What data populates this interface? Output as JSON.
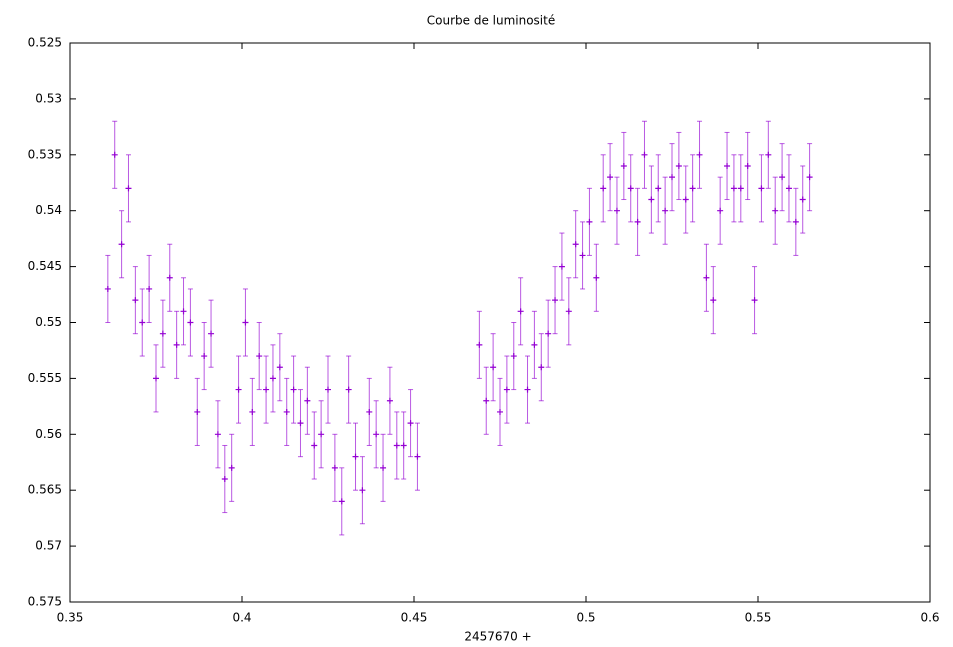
{
  "chart_data": {
    "type": "scatter",
    "title": "Courbe de luminosité",
    "x_label": "2457670 +",
    "xlim": [
      0.35,
      0.6
    ],
    "xticks": [
      0.35,
      0.4,
      0.45,
      0.5,
      0.55,
      0.6
    ],
    "ylim": [
      0.575,
      0.525
    ],
    "yticks": [
      0.525,
      0.53,
      0.535,
      0.54,
      0.545,
      0.55,
      0.555,
      0.56,
      0.565,
      0.57,
      0.575
    ],
    "series": [
      {
        "color": "#9400d3",
        "x": [
          0.361,
          0.363,
          0.365,
          0.367,
          0.369,
          0.371,
          0.373,
          0.375,
          0.377,
          0.379,
          0.381,
          0.383,
          0.385,
          0.387,
          0.389,
          0.391,
          0.393,
          0.395,
          0.397,
          0.399,
          0.401,
          0.403,
          0.405,
          0.407,
          0.409,
          0.411,
          0.413,
          0.415,
          0.417,
          0.419,
          0.421,
          0.423,
          0.425,
          0.427,
          0.429,
          0.431,
          0.433,
          0.435,
          0.437,
          0.439,
          0.441,
          0.443,
          0.445,
          0.447,
          0.449,
          0.451,
          0.469,
          0.471,
          0.473,
          0.475,
          0.477,
          0.479,
          0.481,
          0.483,
          0.485,
          0.487,
          0.489,
          0.491,
          0.493,
          0.495,
          0.497,
          0.499,
          0.501,
          0.503,
          0.505,
          0.507,
          0.509,
          0.511,
          0.513,
          0.515,
          0.517,
          0.519,
          0.521,
          0.523,
          0.525,
          0.527,
          0.529,
          0.531,
          0.533,
          0.535,
          0.537,
          0.539,
          0.541,
          0.543,
          0.545,
          0.547,
          0.549,
          0.551,
          0.553,
          0.555,
          0.557,
          0.559,
          0.561,
          0.563,
          0.565
        ],
        "values": [
          0.547,
          0.535,
          0.543,
          0.538,
          0.548,
          0.55,
          0.547,
          0.555,
          0.551,
          0.546,
          0.552,
          0.549,
          0.55,
          0.558,
          0.553,
          0.551,
          0.56,
          0.564,
          0.563,
          0.556,
          0.55,
          0.558,
          0.553,
          0.556,
          0.555,
          0.554,
          0.558,
          0.556,
          0.559,
          0.557,
          0.561,
          0.56,
          0.556,
          0.563,
          0.566,
          0.556,
          0.562,
          0.565,
          0.558,
          0.56,
          0.563,
          0.557,
          0.561,
          0.561,
          0.559,
          0.562,
          0.552,
          0.557,
          0.554,
          0.558,
          0.556,
          0.553,
          0.549,
          0.556,
          0.552,
          0.554,
          0.551,
          0.548,
          0.545,
          0.549,
          0.543,
          0.544,
          0.541,
          0.546,
          0.538,
          0.537,
          0.54,
          0.536,
          0.538,
          0.541,
          0.535,
          0.539,
          0.538,
          0.54,
          0.537,
          0.536,
          0.539,
          0.538,
          0.535,
          0.546,
          0.548,
          0.54,
          0.536,
          0.538,
          0.538,
          0.536,
          0.548,
          0.538,
          0.535,
          0.54,
          0.537,
          0.538,
          0.541,
          0.539,
          0.537
        ],
        "errors": [
          0.003,
          0.003,
          0.003,
          0.003,
          0.003,
          0.003,
          0.003,
          0.003,
          0.003,
          0.003,
          0.003,
          0.003,
          0.003,
          0.003,
          0.003,
          0.003,
          0.003,
          0.003,
          0.003,
          0.003,
          0.003,
          0.003,
          0.003,
          0.003,
          0.003,
          0.003,
          0.003,
          0.003,
          0.003,
          0.003,
          0.003,
          0.003,
          0.003,
          0.003,
          0.003,
          0.003,
          0.003,
          0.003,
          0.003,
          0.003,
          0.003,
          0.003,
          0.003,
          0.003,
          0.003,
          0.003,
          0.003,
          0.003,
          0.003,
          0.003,
          0.003,
          0.003,
          0.003,
          0.003,
          0.003,
          0.003,
          0.003,
          0.003,
          0.003,
          0.003,
          0.003,
          0.003,
          0.003,
          0.003,
          0.003,
          0.003,
          0.003,
          0.003,
          0.003,
          0.003,
          0.003,
          0.003,
          0.003,
          0.003,
          0.003,
          0.003,
          0.003,
          0.003,
          0.003,
          0.003,
          0.003,
          0.003,
          0.003,
          0.003,
          0.003,
          0.003,
          0.003,
          0.003,
          0.003,
          0.003,
          0.003,
          0.003,
          0.003,
          0.003,
          0.003
        ]
      }
    ]
  }
}
